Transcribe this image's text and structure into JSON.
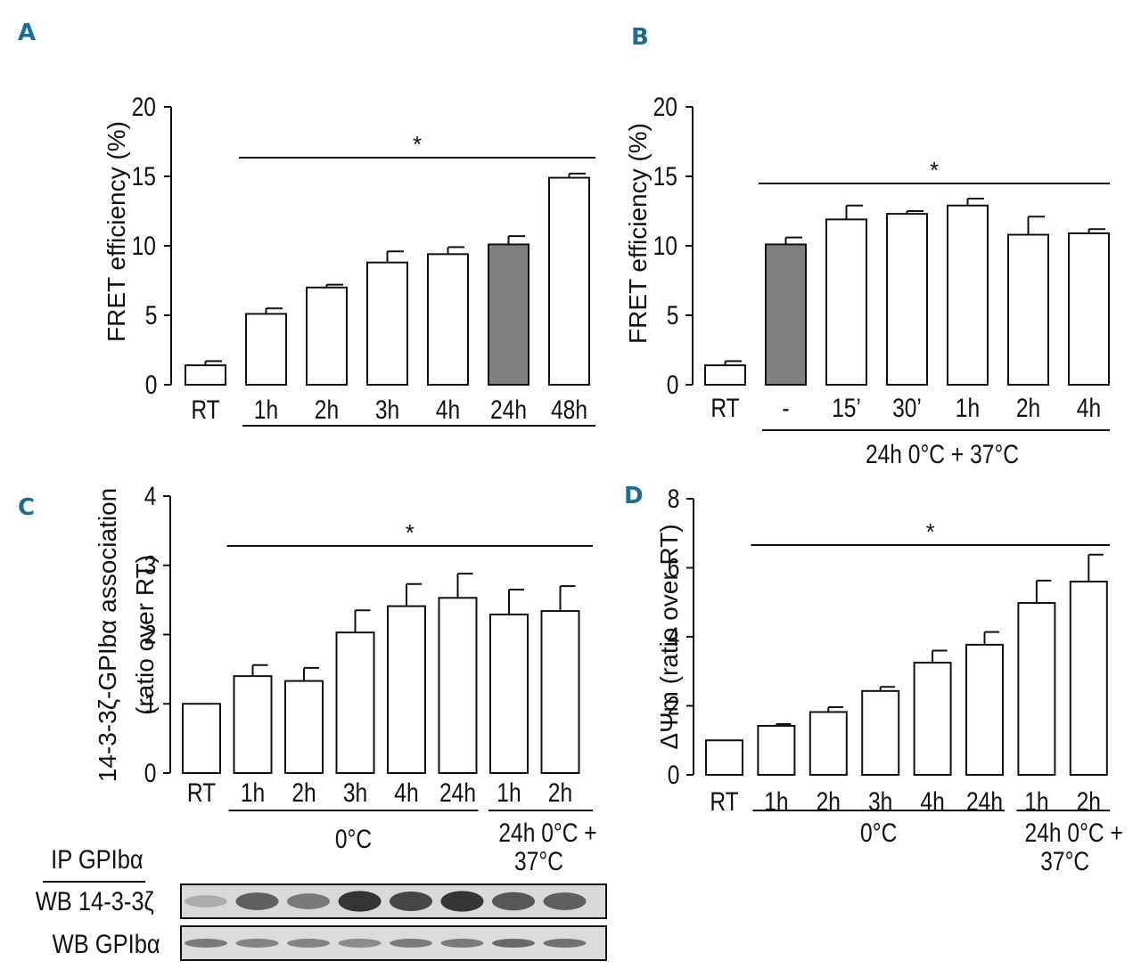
{
  "figure": {
    "panels": [
      "A",
      "B",
      "C",
      "D"
    ]
  },
  "chart_data": [
    {
      "panel": "A",
      "type": "bar",
      "ylabel": "FRET efficiency (%)",
      "ylim": [
        0,
        20
      ],
      "yticks": [
        "0",
        "5",
        "10",
        "15",
        "20"
      ],
      "categories": [
        "RT",
        "1h",
        "2h",
        "3h",
        "4h",
        "24h",
        "48h"
      ],
      "values": [
        1.4,
        5.1,
        7.0,
        8.8,
        9.4,
        10.1,
        14.9
      ],
      "errors": [
        0.3,
        0.4,
        0.2,
        0.8,
        0.5,
        0.6,
        0.3
      ],
      "gray_index": 5,
      "significance": "*",
      "sig_span": [
        "1h",
        "48h"
      ],
      "group_labels": [
        {
          "label": "",
          "span": [
            "1h",
            "48h"
          ]
        }
      ]
    },
    {
      "panel": "B",
      "type": "bar",
      "ylabel": "FRET efficiency (%)",
      "ylim": [
        0,
        20
      ],
      "yticks": [
        "0",
        "5",
        "10",
        "15",
        "20"
      ],
      "categories": [
        "RT",
        "-",
        "15’",
        "30’",
        "1h",
        "2h",
        "4h"
      ],
      "values": [
        1.4,
        10.1,
        11.9,
        12.3,
        12.9,
        10.8,
        10.9
      ],
      "errors": [
        0.3,
        0.5,
        1.0,
        0.2,
        0.5,
        1.3,
        0.3
      ],
      "gray_index": 1,
      "significance": "*",
      "sig_span": [
        "-",
        "4h"
      ],
      "group_labels": [
        {
          "label": "24h 0°C + 37°C",
          "span": [
            "-",
            "4h"
          ]
        }
      ]
    },
    {
      "panel": "C",
      "type": "bar",
      "ylabel": "14-3-3ζ-GPIbα association",
      "ylabel2": "(ratio over RT)",
      "ylim": [
        0,
        4
      ],
      "yticks": [
        "0",
        "1",
        "2",
        "3",
        "4"
      ],
      "categories": [
        "RT",
        "1h",
        "2h",
        "3h",
        "4h",
        "24h",
        "1h",
        "2h"
      ],
      "values": [
        1.0,
        1.4,
        1.33,
        2.03,
        2.41,
        2.53,
        2.29,
        2.34
      ],
      "errors": [
        0.0,
        0.16,
        0.19,
        0.32,
        0.32,
        0.35,
        0.36,
        0.36
      ],
      "gray_index": -1,
      "significance": "*",
      "sig_span": [
        "1h",
        "2h"
      ],
      "group_labels": [
        {
          "label": "0°C",
          "span": [
            "1h",
            "24h"
          ]
        },
        {
          "label": "24h 0°C +",
          "label2": "37°C",
          "span": [
            "1h",
            "2h"
          ]
        }
      ]
    },
    {
      "panel": "D",
      "type": "bar",
      "ylabel": "ΔΨm (ratio over RT)",
      "ylim": [
        0,
        8
      ],
      "yticks": [
        "0",
        "2",
        "4",
        "6",
        "8"
      ],
      "categories": [
        "RT",
        "1h",
        "2h",
        "3h",
        "4h",
        "24h",
        "1h",
        "2h"
      ],
      "values": [
        1.0,
        1.42,
        1.82,
        2.43,
        3.25,
        3.77,
        4.98,
        5.6
      ],
      "errors": [
        0.0,
        0.05,
        0.14,
        0.12,
        0.35,
        0.37,
        0.65,
        0.78
      ],
      "gray_index": -1,
      "significance": "*",
      "sig_span": [
        "1h",
        "2h"
      ],
      "group_labels": [
        {
          "label": "0°C",
          "span": [
            "1h",
            "24h"
          ]
        },
        {
          "label": "24h 0°C +",
          "label2": "37°C",
          "span": [
            "1h",
            "2h"
          ]
        }
      ]
    }
  ],
  "blot": {
    "ip_label": "IP GPIbα",
    "rows": [
      {
        "label": "WB 14-3-3ζ",
        "intensities": [
          0.25,
          0.7,
          0.55,
          0.95,
          0.85,
          0.95,
          0.75,
          0.7
        ]
      },
      {
        "label": "WB GPIbα",
        "intensities": [
          0.55,
          0.5,
          0.5,
          0.45,
          0.55,
          0.55,
          0.65,
          0.6
        ]
      }
    ]
  },
  "colors": {
    "gray_bar": "#808080",
    "bar_fill": "#ffffff",
    "stroke": "#111111",
    "panel_letter": "#1a6e96"
  }
}
